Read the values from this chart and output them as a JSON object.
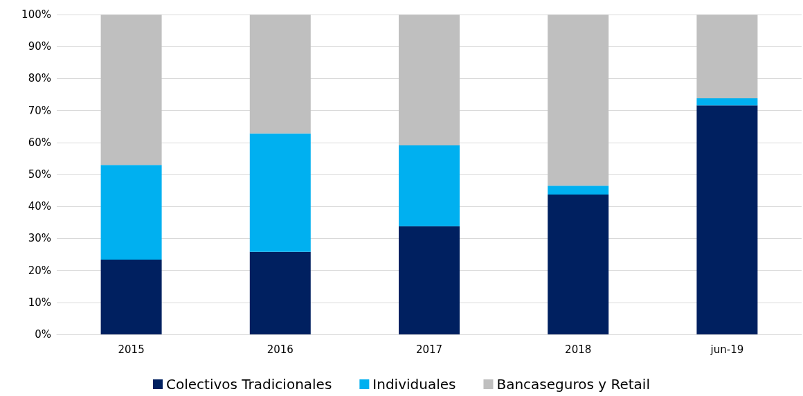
{
  "chart_data": {
    "type": "bar",
    "stacked": true,
    "categories": [
      "2015",
      "2016",
      "2017",
      "2018",
      "jun-19"
    ],
    "series": [
      {
        "name": "Colectivos Tradicionales",
        "color": "#002060",
        "values": [
          23.4,
          25.8,
          33.8,
          43.7,
          71.6
        ]
      },
      {
        "name": "Individuales",
        "color": "#00b0f0",
        "values": [
          29.6,
          37.0,
          25.3,
          2.8,
          2.2
        ]
      },
      {
        "name": "Bancaseguros y Retail",
        "color": "#bfbfbf",
        "values": [
          47.0,
          37.2,
          40.9,
          53.5,
          26.2
        ]
      }
    ],
    "ylim": [
      0,
      100
    ],
    "yticks": [
      {
        "value": 0,
        "label": "0%"
      },
      {
        "value": 10,
        "label": "10%"
      },
      {
        "value": 20,
        "label": "20%"
      },
      {
        "value": 30,
        "label": "30%"
      },
      {
        "value": 40,
        "label": "40%"
      },
      {
        "value": 50,
        "label": "50%"
      },
      {
        "value": 60,
        "label": "60%"
      },
      {
        "value": 70,
        "label": "70%"
      },
      {
        "value": 80,
        "label": "80%"
      },
      {
        "value": 90,
        "label": "90%"
      },
      {
        "value": 100,
        "label": "100%"
      }
    ],
    "grid": "y",
    "legend": "bottom"
  }
}
